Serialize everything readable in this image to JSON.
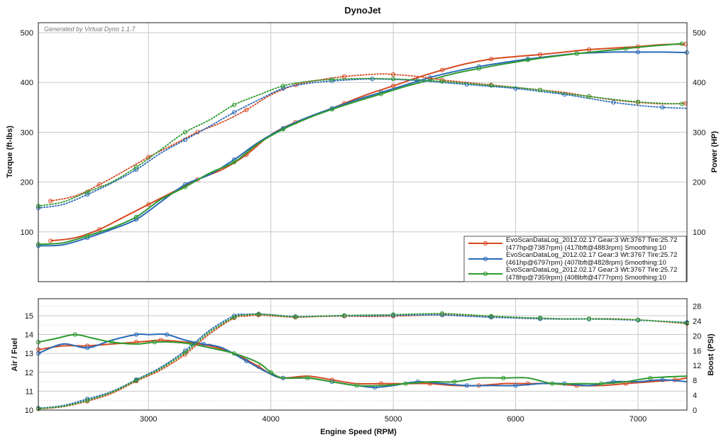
{
  "chart_data": [
    {
      "type": "line",
      "title": "DynoJet",
      "subtitle": "Generated by Virtual Dyno 1.1.7",
      "xlabel": "",
      "ylabel": "Torque (ft-lbs)",
      "ylabel_right": "Power (HP)",
      "xlim": [
        2100,
        7400
      ],
      "ylim": [
        0,
        520
      ],
      "ylim_right": [
        0,
        520
      ],
      "yticks": [
        100,
        200,
        300,
        400,
        500
      ],
      "yticks_right": [
        100,
        200,
        300,
        400,
        500
      ],
      "grid": true,
      "legend_position": "bottom-right",
      "legend": [
        {
          "color": "#d64a22",
          "line1": "EvoScanDataLog_2012.02.17 Gear:3 Wt:3767 Tire:25.72",
          "line2": "(477hp@7387rpm) (417lbft@4883rpm) Smoothing:10"
        },
        {
          "color": "#2a6ab8",
          "line1": "EvoScanDataLog_2012.02.17 Gear:3 Wt:3767 Tire:25.72",
          "line2": "(461hp@6797rpm) (407lbft@4828rpm) Smoothing:10"
        },
        {
          "color": "#2f9a2f",
          "line1": "EvoScanDataLog_2012.02.17 Gear:3 Wt:3767 Tire:25.72",
          "line2": "(478hp@7359rpm) (408lbft@4777rpm) Smoothing:10"
        }
      ],
      "series": [
        {
          "kind": "power",
          "color": "#d64a22",
          "x": [
            2200,
            2400,
            2600,
            2800,
            3000,
            3200,
            3400,
            3600,
            3800,
            4000,
            4200,
            4400,
            4600,
            4800,
            5000,
            5200,
            5400,
            5600,
            5800,
            6000,
            6200,
            6400,
            6600,
            6800,
            7000,
            7200,
            7387
          ],
          "y": [
            82,
            88,
            105,
            130,
            155,
            180,
            205,
            225,
            255,
            295,
            320,
            338,
            358,
            377,
            393,
            410,
            425,
            438,
            447,
            452,
            456,
            461,
            466,
            469,
            472,
            476,
            477
          ]
        },
        {
          "kind": "power",
          "color": "#2a6ab8",
          "x": [
            2100,
            2300,
            2500,
            2700,
            2900,
            3100,
            3300,
            3500,
            3700,
            3900,
            4100,
            4300,
            4500,
            4700,
            4900,
            5100,
            5300,
            5500,
            5700,
            5900,
            6100,
            6300,
            6500,
            6797,
            7000,
            7200,
            7400
          ],
          "y": [
            72,
            74,
            88,
            105,
            125,
            160,
            195,
            215,
            245,
            280,
            308,
            330,
            348,
            365,
            380,
            395,
            410,
            422,
            432,
            440,
            447,
            453,
            458,
            461,
            461,
            461,
            460
          ]
        },
        {
          "kind": "power",
          "color": "#2f9a2f",
          "x": [
            2100,
            2300,
            2500,
            2700,
            2900,
            3100,
            3300,
            3500,
            3700,
            3900,
            4100,
            4300,
            4500,
            4700,
            4900,
            5100,
            5300,
            5500,
            5700,
            5900,
            6100,
            6300,
            6500,
            6700,
            6900,
            7100,
            7359
          ],
          "y": [
            75,
            78,
            92,
            108,
            130,
            165,
            190,
            218,
            240,
            278,
            306,
            328,
            346,
            362,
            377,
            392,
            405,
            418,
            428,
            437,
            445,
            452,
            458,
            463,
            468,
            473,
            478
          ]
        },
        {
          "kind": "torque",
          "color": "#d64a22",
          "x": [
            2200,
            2400,
            2600,
            2800,
            3000,
            3200,
            3400,
            3600,
            3800,
            4000,
            4200,
            4400,
            4600,
            4883,
            5000,
            5200,
            5400,
            5600,
            5800,
            6000,
            6200,
            6400,
            6600,
            6800,
            7000,
            7200,
            7387
          ],
          "y": [
            162,
            172,
            195,
            222,
            250,
            275,
            300,
            320,
            345,
            375,
            395,
            405,
            412,
            417,
            416,
            412,
            405,
            400,
            395,
            390,
            385,
            380,
            372,
            365,
            360,
            357,
            358
          ]
        },
        {
          "kind": "torque",
          "color": "#2a6ab8",
          "x": [
            2100,
            2300,
            2500,
            2700,
            2900,
            3100,
            3300,
            3500,
            3700,
            3900,
            4100,
            4300,
            4500,
            4700,
            4828,
            5000,
            5200,
            5400,
            5600,
            5800,
            6000,
            6200,
            6400,
            6600,
            6800,
            7000,
            7200,
            7400
          ],
          "y": [
            148,
            155,
            175,
            198,
            225,
            258,
            285,
            312,
            340,
            365,
            388,
            398,
            403,
            406,
            407,
            406,
            404,
            400,
            396,
            392,
            388,
            382,
            376,
            368,
            360,
            354,
            350,
            348
          ]
        },
        {
          "kind": "torque",
          "color": "#2f9a2f",
          "x": [
            2100,
            2300,
            2500,
            2700,
            2900,
            3100,
            3300,
            3500,
            3700,
            3900,
            4100,
            4300,
            4500,
            4777,
            5000,
            5200,
            5400,
            5600,
            5800,
            6000,
            6200,
            6400,
            6600,
            6800,
            7000,
            7200,
            7359
          ],
          "y": [
            152,
            160,
            180,
            200,
            230,
            265,
            300,
            325,
            355,
            375,
            393,
            402,
            406,
            408,
            407,
            405,
            402,
            398,
            394,
            390,
            385,
            378,
            372,
            366,
            361,
            358,
            357
          ]
        }
      ]
    },
    {
      "type": "line",
      "title": "",
      "xlabel": "Engine Speed (RPM)",
      "ylabel": "Air / Fuel",
      "ylabel_right": "Boost (PSI)",
      "xlim": [
        2100,
        7400
      ],
      "xticks": [
        3000,
        4000,
        5000,
        6000,
        7000
      ],
      "ylim": [
        10,
        15.9
      ],
      "yticks": [
        10,
        11,
        12,
        13,
        14,
        15
      ],
      "ylim_right": [
        0,
        30
      ],
      "yticks_right": [
        0,
        4,
        8,
        12,
        16,
        20,
        24,
        28
      ],
      "grid": true,
      "series": [
        {
          "kind": "afr",
          "color": "#d64a22",
          "x": [
            2100,
            2300,
            2500,
            2700,
            2900,
            3000,
            3100,
            3300,
            3500,
            3700,
            3900,
            4000,
            4100,
            4300,
            4500,
            4700,
            4900,
            5100,
            5300,
            5500,
            5700,
            5900,
            6100,
            6300,
            6500,
            6700,
            6900,
            7100,
            7300,
            7400
          ],
          "y": [
            13.2,
            13.4,
            13.4,
            13.5,
            13.6,
            13.65,
            13.7,
            13.6,
            13.4,
            13.0,
            12.3,
            11.9,
            11.7,
            11.8,
            11.6,
            11.4,
            11.4,
            11.4,
            11.4,
            11.3,
            11.3,
            11.4,
            11.4,
            11.4,
            11.3,
            11.3,
            11.4,
            11.5,
            11.6,
            11.7
          ]
        },
        {
          "kind": "afr",
          "color": "#2a6ab8",
          "x": [
            2100,
            2300,
            2500,
            2700,
            2900,
            3000,
            3150,
            3300,
            3450,
            3600,
            3800,
            4000,
            4100,
            4300,
            4500,
            4700,
            4850,
            5000,
            5200,
            5400,
            5600,
            5800,
            6000,
            6200,
            6400,
            6600,
            6800,
            7000,
            7200,
            7400
          ],
          "y": [
            13.0,
            13.5,
            13.3,
            13.7,
            14.0,
            14.0,
            14.0,
            13.7,
            13.5,
            13.3,
            12.6,
            11.9,
            11.7,
            11.7,
            11.5,
            11.3,
            11.2,
            11.3,
            11.5,
            11.4,
            11.3,
            11.3,
            11.3,
            11.4,
            11.4,
            11.3,
            11.5,
            11.5,
            11.6,
            11.5
          ]
        },
        {
          "kind": "afr",
          "color": "#2f9a2f",
          "x": [
            2100,
            2250,
            2400,
            2550,
            2700,
            2900,
            3050,
            3200,
            3350,
            3500,
            3700,
            3900,
            4000,
            4100,
            4300,
            4500,
            4700,
            4900,
            5100,
            5300,
            5500,
            5700,
            5900,
            6100,
            6300,
            6500,
            6700,
            6900,
            7100,
            7400
          ],
          "y": [
            13.6,
            13.8,
            14.0,
            13.8,
            13.6,
            13.5,
            13.6,
            13.6,
            13.5,
            13.3,
            13.0,
            12.5,
            12.0,
            11.7,
            11.7,
            11.5,
            11.3,
            11.3,
            11.4,
            11.5,
            11.5,
            11.7,
            11.7,
            11.7,
            11.4,
            11.4,
            11.4,
            11.5,
            11.7,
            11.8
          ]
        },
        {
          "kind": "boost",
          "color": "#d64a22",
          "x": [
            2100,
            2300,
            2500,
            2700,
            2900,
            3100,
            3300,
            3500,
            3700,
            3800,
            3900,
            4000,
            4200,
            4400,
            4600,
            4800,
            5000,
            5200,
            5400,
            5600,
            5800,
            6000,
            6200,
            6400,
            6600,
            6800,
            7000,
            7200,
            7400
          ],
          "y": [
            0.3,
            0.9,
            2.4,
            4.5,
            7.8,
            10.8,
            15.0,
            20.5,
            24.8,
            25.3,
            25.6,
            25.4,
            25.0,
            25.2,
            25.3,
            25.2,
            25.3,
            25.5,
            25.7,
            25.4,
            25.2,
            24.8,
            24.6,
            24.5,
            24.6,
            24.6,
            24.3,
            23.8,
            23.3
          ]
        },
        {
          "kind": "boost",
          "color": "#2a6ab8",
          "x": [
            2100,
            2300,
            2500,
            2700,
            2900,
            3100,
            3300,
            3500,
            3700,
            3800,
            3900,
            4000,
            4200,
            4400,
            4600,
            4800,
            5000,
            5200,
            5400,
            5600,
            5800,
            6000,
            6200,
            6400,
            6600,
            6800,
            7000,
            7200,
            7400
          ],
          "y": [
            0.5,
            1.2,
            3.0,
            5.0,
            8.2,
            11.5,
            16.0,
            21.5,
            25.4,
            25.8,
            25.9,
            25.7,
            25.2,
            25.3,
            25.4,
            25.4,
            25.5,
            25.6,
            25.6,
            25.3,
            25.0,
            24.8,
            24.6,
            24.5,
            24.5,
            24.4,
            24.2,
            23.9,
            23.6
          ]
        },
        {
          "kind": "boost",
          "color": "#2f9a2f",
          "x": [
            2100,
            2300,
            2500,
            2700,
            2900,
            3100,
            3300,
            3500,
            3700,
            3800,
            3900,
            4000,
            4200,
            4400,
            4600,
            4800,
            5000,
            5200,
            5400,
            5600,
            5800,
            6000,
            6200,
            6400,
            6600,
            6800,
            7000,
            7200,
            7400
          ],
          "y": [
            0.4,
            1.0,
            2.6,
            4.8,
            8.0,
            11.2,
            15.5,
            21.0,
            25.0,
            25.6,
            25.8,
            25.6,
            25.1,
            25.3,
            25.5,
            25.6,
            25.7,
            25.9,
            26.0,
            25.7,
            25.3,
            25.0,
            24.8,
            24.6,
            24.6,
            24.5,
            24.3,
            23.9,
            23.4
          ]
        }
      ]
    }
  ]
}
